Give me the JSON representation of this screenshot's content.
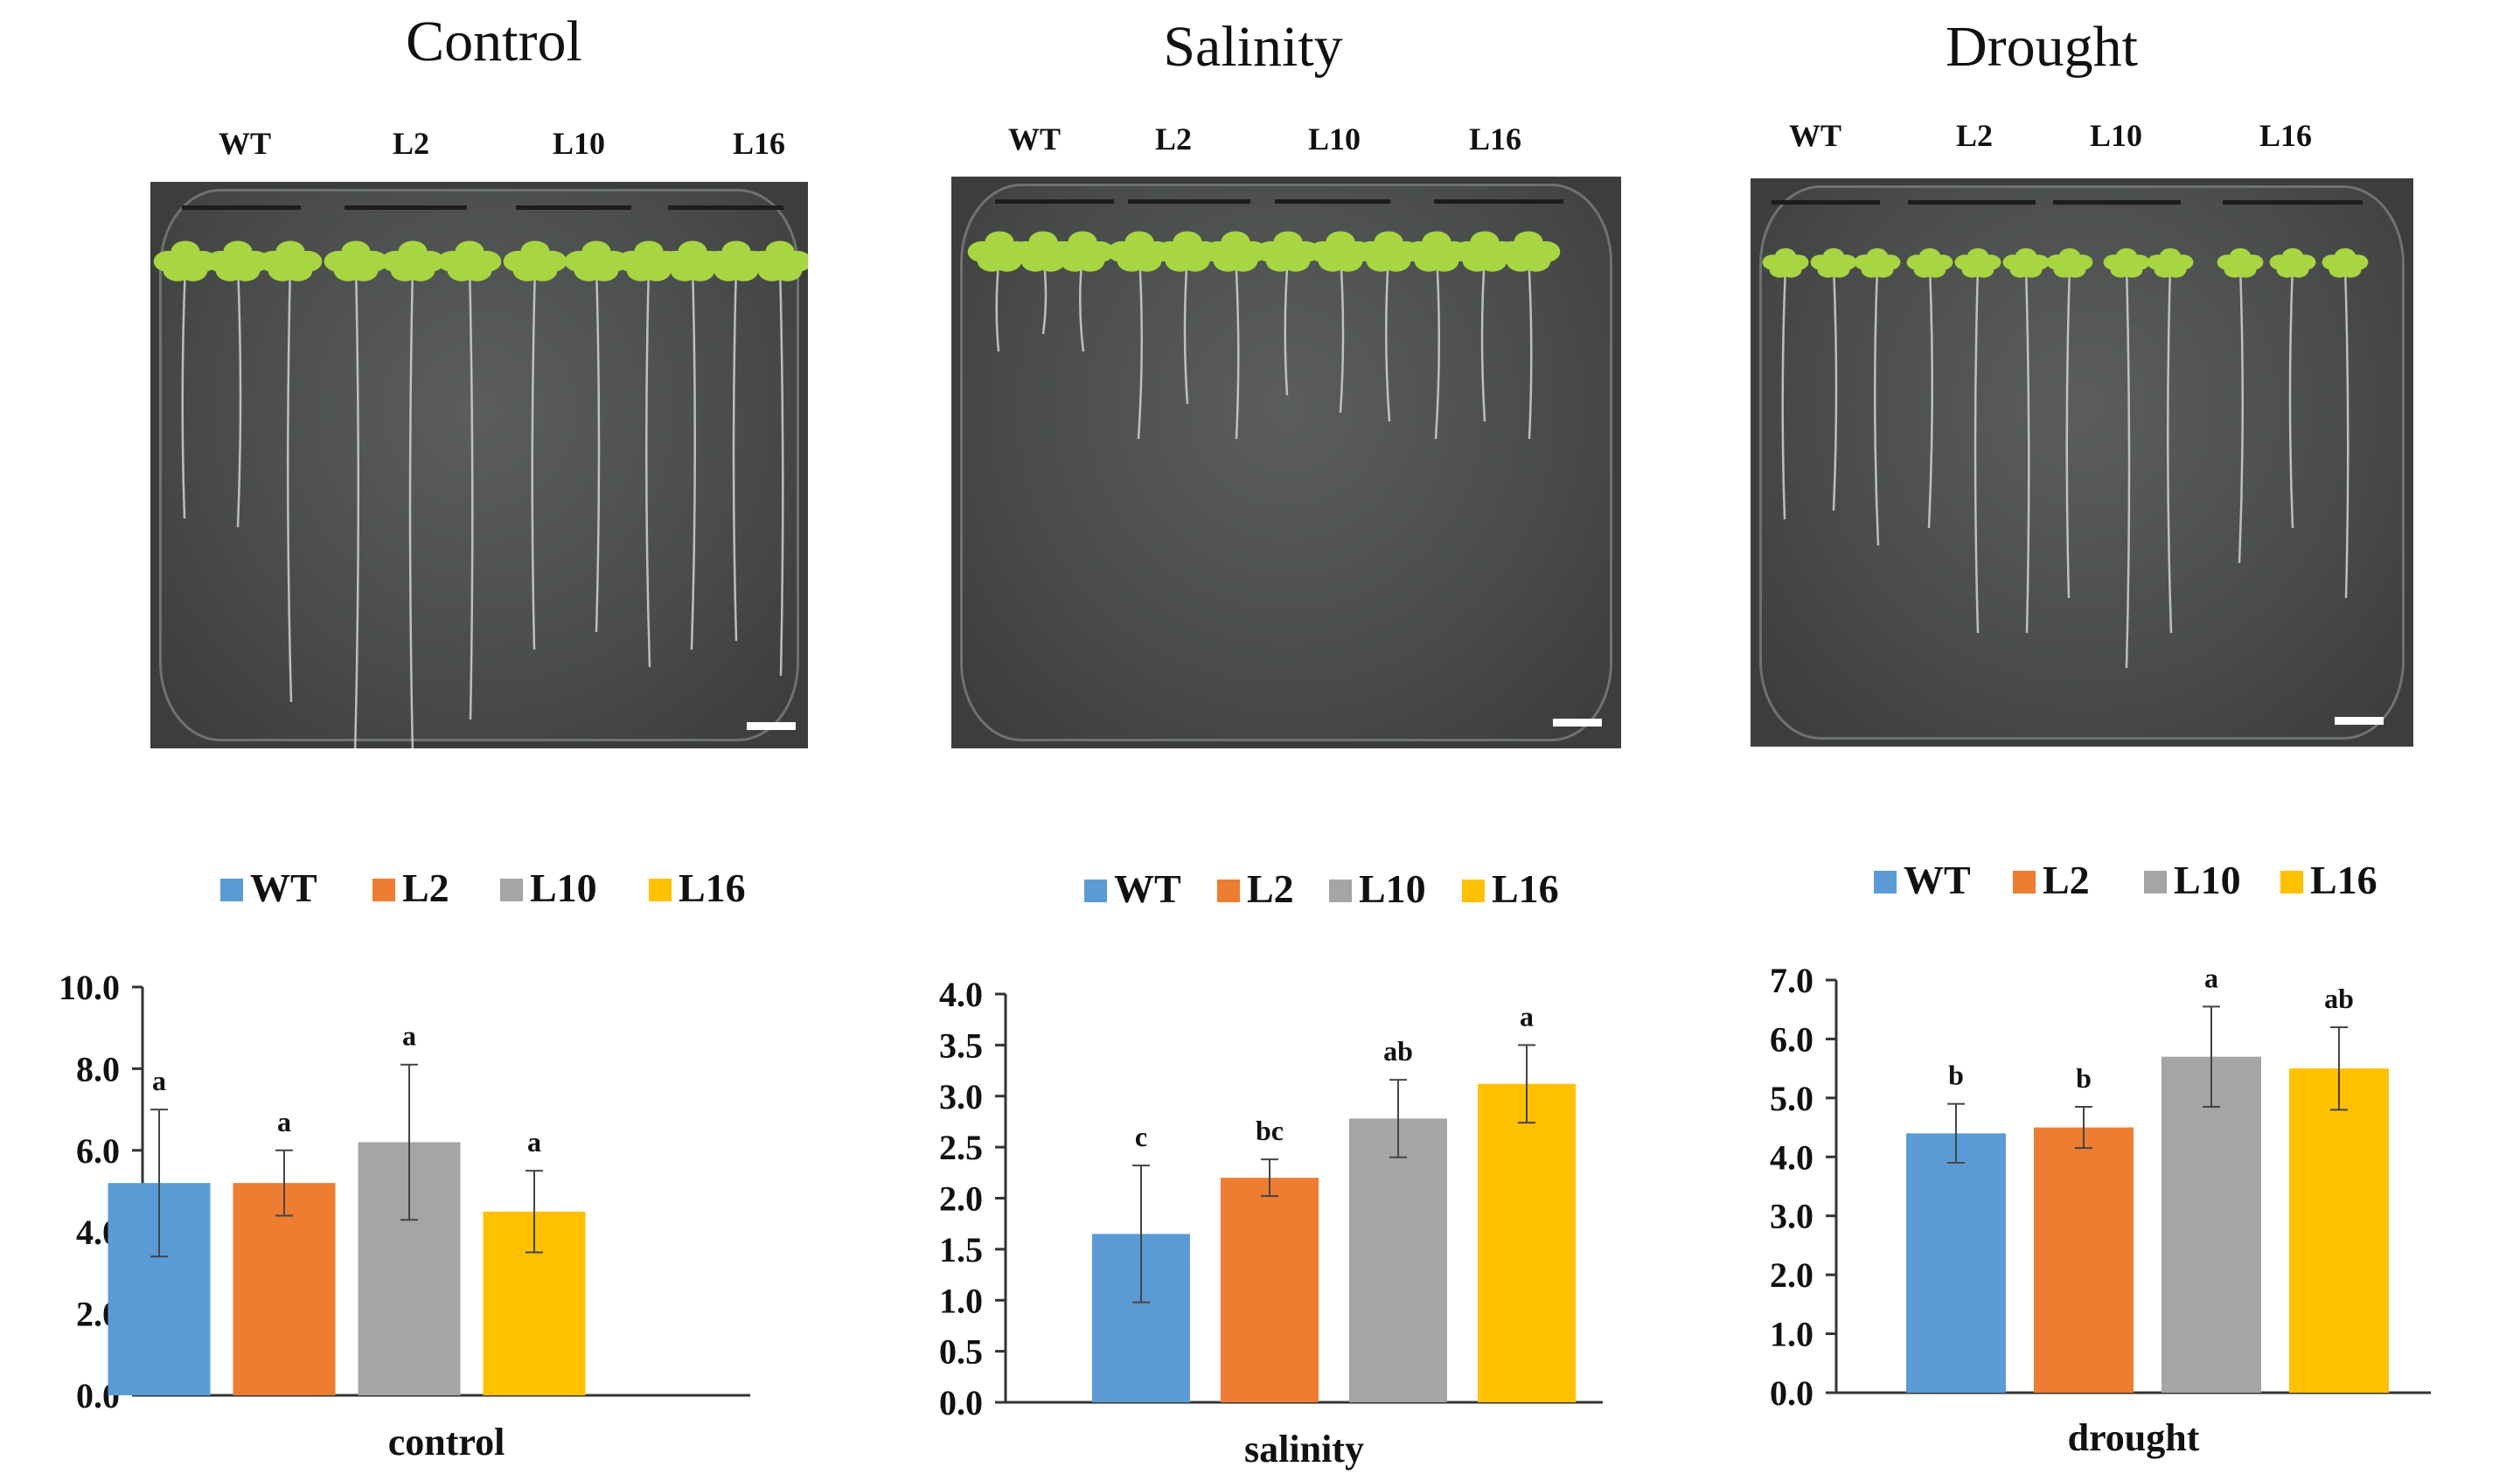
{
  "photo_panels": [
    {
      "title": "Control",
      "lines": [
        "WT",
        "L2",
        "L10",
        "L16"
      ]
    },
    {
      "title": "Salinity",
      "lines": [
        "WT",
        "L2",
        "L10",
        "L16"
      ]
    },
    {
      "title": "Drought",
      "lines": [
        "WT",
        "L2",
        "L10",
        "L16"
      ]
    }
  ],
  "colors": {
    "WT": "#5b9bd5",
    "L2": "#ed7d31",
    "L10": "#a5a5a5",
    "L16": "#ffc000",
    "seedling": "#a8d642",
    "root": "#d8dcd6"
  },
  "chart_data": [
    {
      "type": "bar",
      "title": "",
      "xlabel": "control",
      "ylabel": "",
      "categories": [
        "WT",
        "L2",
        "L10",
        "L16"
      ],
      "values": [
        5.2,
        5.2,
        6.2,
        4.5
      ],
      "errors": [
        1.8,
        0.8,
        1.9,
        1.0
      ],
      "significance": [
        "a",
        "a",
        "a",
        "a"
      ],
      "ylim": [
        0,
        10
      ],
      "yticks": [
        "0.0",
        "2.0",
        "4.0",
        "6.0",
        "8.0",
        "10.0"
      ],
      "legend": [
        "WT",
        "L2",
        "L10",
        "L16"
      ],
      "legend_position": "top"
    },
    {
      "type": "bar",
      "title": "",
      "xlabel": "salinity",
      "ylabel": "",
      "categories": [
        "WT",
        "L2",
        "L10",
        "L16"
      ],
      "values": [
        1.65,
        2.2,
        2.78,
        3.12
      ],
      "errors": [
        0.67,
        0.18,
        0.38,
        0.38
      ],
      "significance": [
        "c",
        "bc",
        "ab",
        "a"
      ],
      "ylim": [
        0,
        4
      ],
      "yticks": [
        "0.0",
        "0.5",
        "1.0",
        "1.5",
        "2.0",
        "2.5",
        "3.0",
        "3.5",
        "4.0"
      ],
      "legend": [
        "WT",
        "L2",
        "L10",
        "L16"
      ],
      "legend_position": "top"
    },
    {
      "type": "bar",
      "title": "",
      "xlabel": "drought",
      "ylabel": "",
      "categories": [
        "WT",
        "L2",
        "L10",
        "L16"
      ],
      "values": [
        4.4,
        4.5,
        5.7,
        5.5
      ],
      "errors": [
        0.5,
        0.35,
        0.85,
        0.7
      ],
      "significance": [
        "b",
        "b",
        "a",
        "ab"
      ],
      "ylim": [
        0,
        7
      ],
      "yticks": [
        "0.0",
        "1.0",
        "2.0",
        "3.0",
        "4.0",
        "5.0",
        "6.0",
        "7.0"
      ],
      "legend": [
        "WT",
        "L2",
        "L10",
        "L16"
      ],
      "legend_position": "top"
    }
  ]
}
